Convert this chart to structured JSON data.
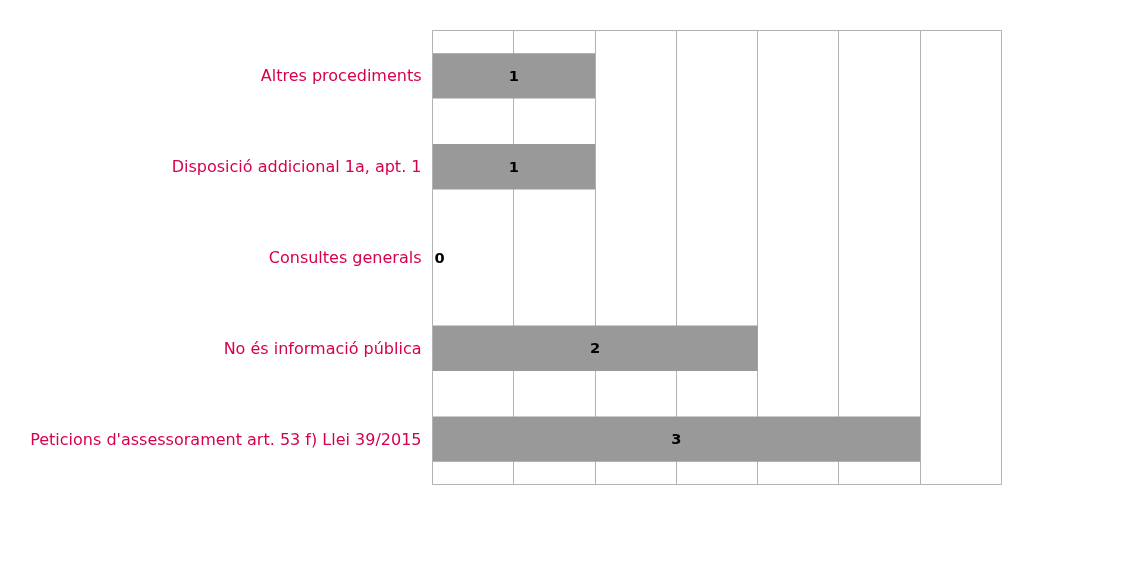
{
  "chart_data": {
    "type": "bar",
    "orientation": "horizontal",
    "categories": [
      "Altres procediments",
      "Disposició addicional 1a, apt. 1",
      "Consultes generals",
      "No és informació pública",
      "Peticions d'assessorament art. 53 f) Llei 39/2015"
    ],
    "values": [
      1,
      1,
      0,
      2,
      3
    ],
    "color": "#999999",
    "data_labels": true,
    "xlim": [
      0,
      3.5
    ],
    "xticks": [
      {
        "value": 0,
        "label": null
      },
      {
        "value": 0.5,
        "label": null
      },
      {
        "value": 1,
        "label": null
      },
      {
        "value": 1.5,
        "label": null
      },
      {
        "value": 2,
        "label": null
      },
      {
        "value": 2.5,
        "label": null
      },
      {
        "value": 3,
        "label": null
      },
      {
        "value": 3.5,
        "label": null
      }
    ],
    "grid": "x",
    "tick_labels": "y"
  }
}
